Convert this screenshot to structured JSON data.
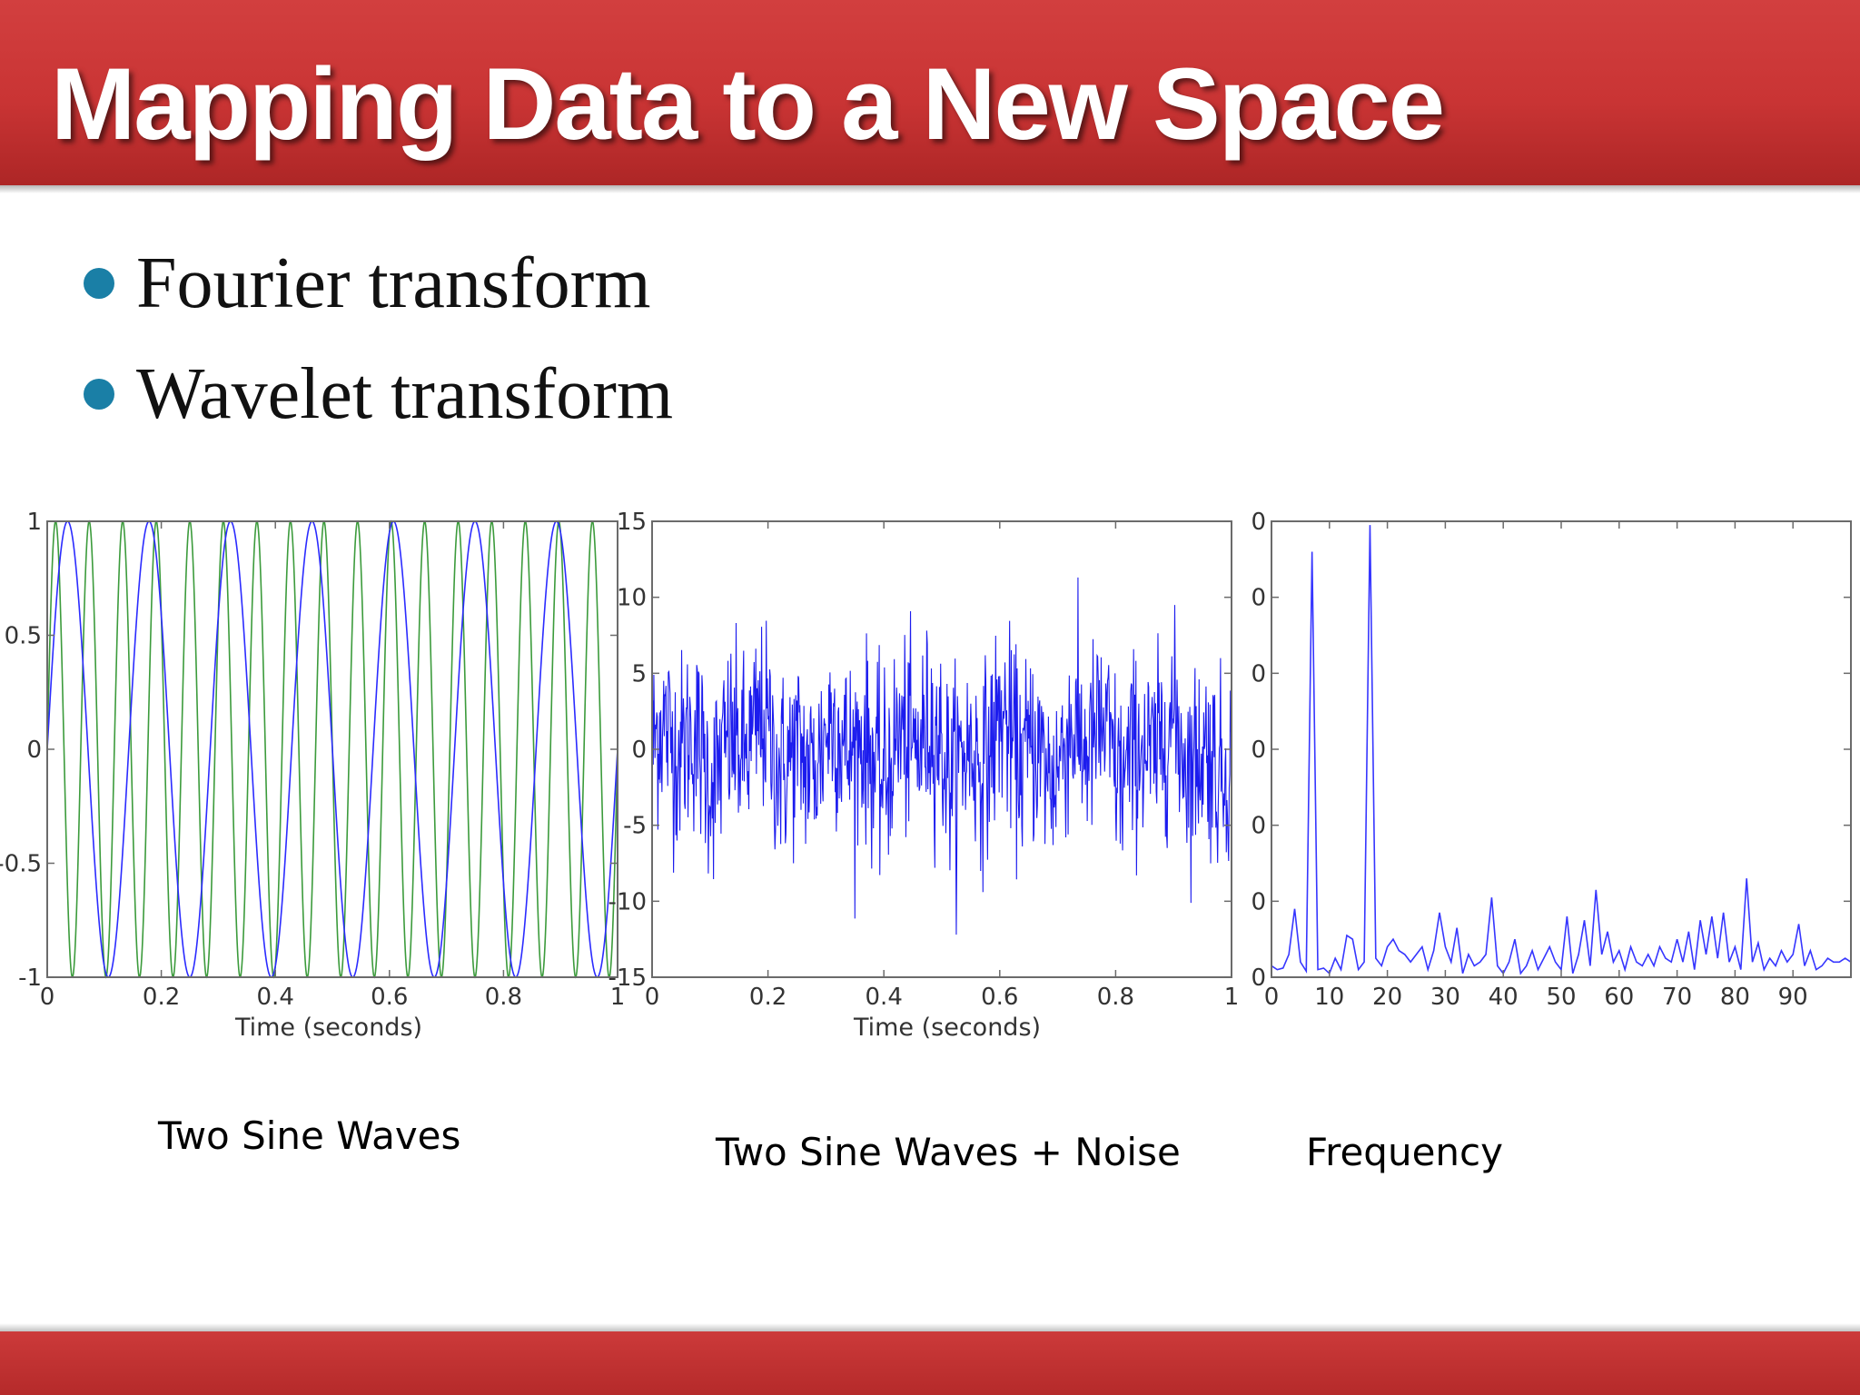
{
  "slide": {
    "title": "Mapping Data to a New Space",
    "bullets": [
      "Fourier transform",
      "Wavelet transform"
    ],
    "captions": [
      "Two Sine Waves",
      "Two Sine Waves + Noise",
      "Frequency"
    ]
  },
  "colors": {
    "title_bar": "#c93434",
    "footer_bar": "#c23232",
    "bullet": "#1a7fa6",
    "series_blue": "#2b2bff",
    "series_green": "#3c9b3c",
    "noise_blue": "#1c1cee",
    "spectrum_blue": "#3636ff",
    "axis": "#6b6b6b"
  },
  "chart_data": [
    {
      "type": "line",
      "title": "",
      "xlabel": "Time (seconds)",
      "ylabel": "",
      "xlim": [
        0,
        1
      ],
      "ylim": [
        -1,
        1
      ],
      "x_ticks": [
        "0",
        "0.2",
        "0.4",
        "0.6",
        "0.8",
        "1"
      ],
      "y_ticks": [
        "-1",
        "-0.5",
        "0",
        "0.5",
        "1"
      ],
      "series": [
        {
          "frequency_hz": 7,
          "amplitude": 1,
          "color": "#2b2bff"
        },
        {
          "frequency_hz": 17,
          "amplitude": 1,
          "color": "#3c9b3c"
        }
      ]
    },
    {
      "type": "line",
      "title": "",
      "xlabel": "Time (seconds)",
      "ylabel": "",
      "xlim": [
        0,
        1
      ],
      "ylim": [
        -15,
        15
      ],
      "x_ticks": [
        "0",
        "0.2",
        "0.4",
        "0.6",
        "0.8",
        "1"
      ],
      "y_ticks": [
        "-15",
        "-10",
        "-5",
        "0",
        "5",
        "10",
        "15"
      ],
      "series": [
        {
          "components_hz": [
            7,
            17
          ],
          "noise_std": 3.2,
          "noise_max": 11.5,
          "noise_min": -13.5,
          "color": "#1c1cee"
        }
      ]
    },
    {
      "type": "line",
      "title": "",
      "xlabel": "",
      "ylabel": "",
      "xlim": [
        0,
        100
      ],
      "ylim": [
        0,
        6
      ],
      "x_ticks": [
        "0",
        "10",
        "20",
        "30",
        "40",
        "50",
        "60",
        "70",
        "80",
        "90"
      ],
      "y_ticks": [
        "0",
        "0",
        "0",
        "0",
        "0",
        "0",
        "0"
      ],
      "series": [
        {
          "color": "#3636ff",
          "x": [
            0,
            1,
            2,
            3,
            4,
            5,
            6,
            7,
            8,
            9,
            10,
            11,
            12,
            13,
            14,
            15,
            16,
            17,
            18,
            19,
            20,
            21,
            22,
            23,
            24,
            25,
            26,
            27,
            28,
            29,
            30,
            31,
            32,
            33,
            34,
            35,
            36,
            37,
            38,
            39,
            40,
            41,
            42,
            43,
            44,
            45,
            46,
            47,
            48,
            49,
            50,
            51,
            52,
            53,
            54,
            55,
            56,
            57,
            58,
            59,
            60,
            61,
            62,
            63,
            64,
            65,
            66,
            67,
            68,
            69,
            70,
            71,
            72,
            73,
            74,
            75,
            76,
            77,
            78,
            79,
            80,
            81,
            82,
            83,
            84,
            85,
            86,
            87,
            88,
            89,
            90,
            91,
            92,
            93,
            94,
            95,
            96,
            97,
            98,
            99,
            100
          ],
          "values": [
            0.15,
            0.1,
            0.12,
            0.3,
            0.9,
            0.2,
            0.08,
            5.6,
            0.1,
            0.12,
            0.05,
            0.25,
            0.1,
            0.55,
            0.5,
            0.1,
            0.2,
            5.95,
            0.25,
            0.15,
            0.4,
            0.5,
            0.35,
            0.3,
            0.2,
            0.3,
            0.4,
            0.1,
            0.35,
            0.85,
            0.4,
            0.2,
            0.65,
            0.05,
            0.3,
            0.15,
            0.2,
            0.3,
            1.05,
            0.15,
            0.05,
            0.2,
            0.5,
            0.05,
            0.15,
            0.35,
            0.1,
            0.25,
            0.4,
            0.2,
            0.1,
            0.8,
            0.05,
            0.3,
            0.75,
            0.15,
            1.15,
            0.3,
            0.6,
            0.2,
            0.35,
            0.1,
            0.4,
            0.2,
            0.15,
            0.3,
            0.15,
            0.4,
            0.25,
            0.2,
            0.5,
            0.2,
            0.6,
            0.1,
            0.75,
            0.3,
            0.8,
            0.25,
            0.85,
            0.2,
            0.4,
            0.1,
            1.3,
            0.2,
            0.45,
            0.1,
            0.25,
            0.15,
            0.35,
            0.2,
            0.3,
            0.7,
            0.15,
            0.35,
            0.1,
            0.15,
            0.25,
            0.2,
            0.2,
            0.25,
            0.2
          ]
        }
      ]
    }
  ]
}
